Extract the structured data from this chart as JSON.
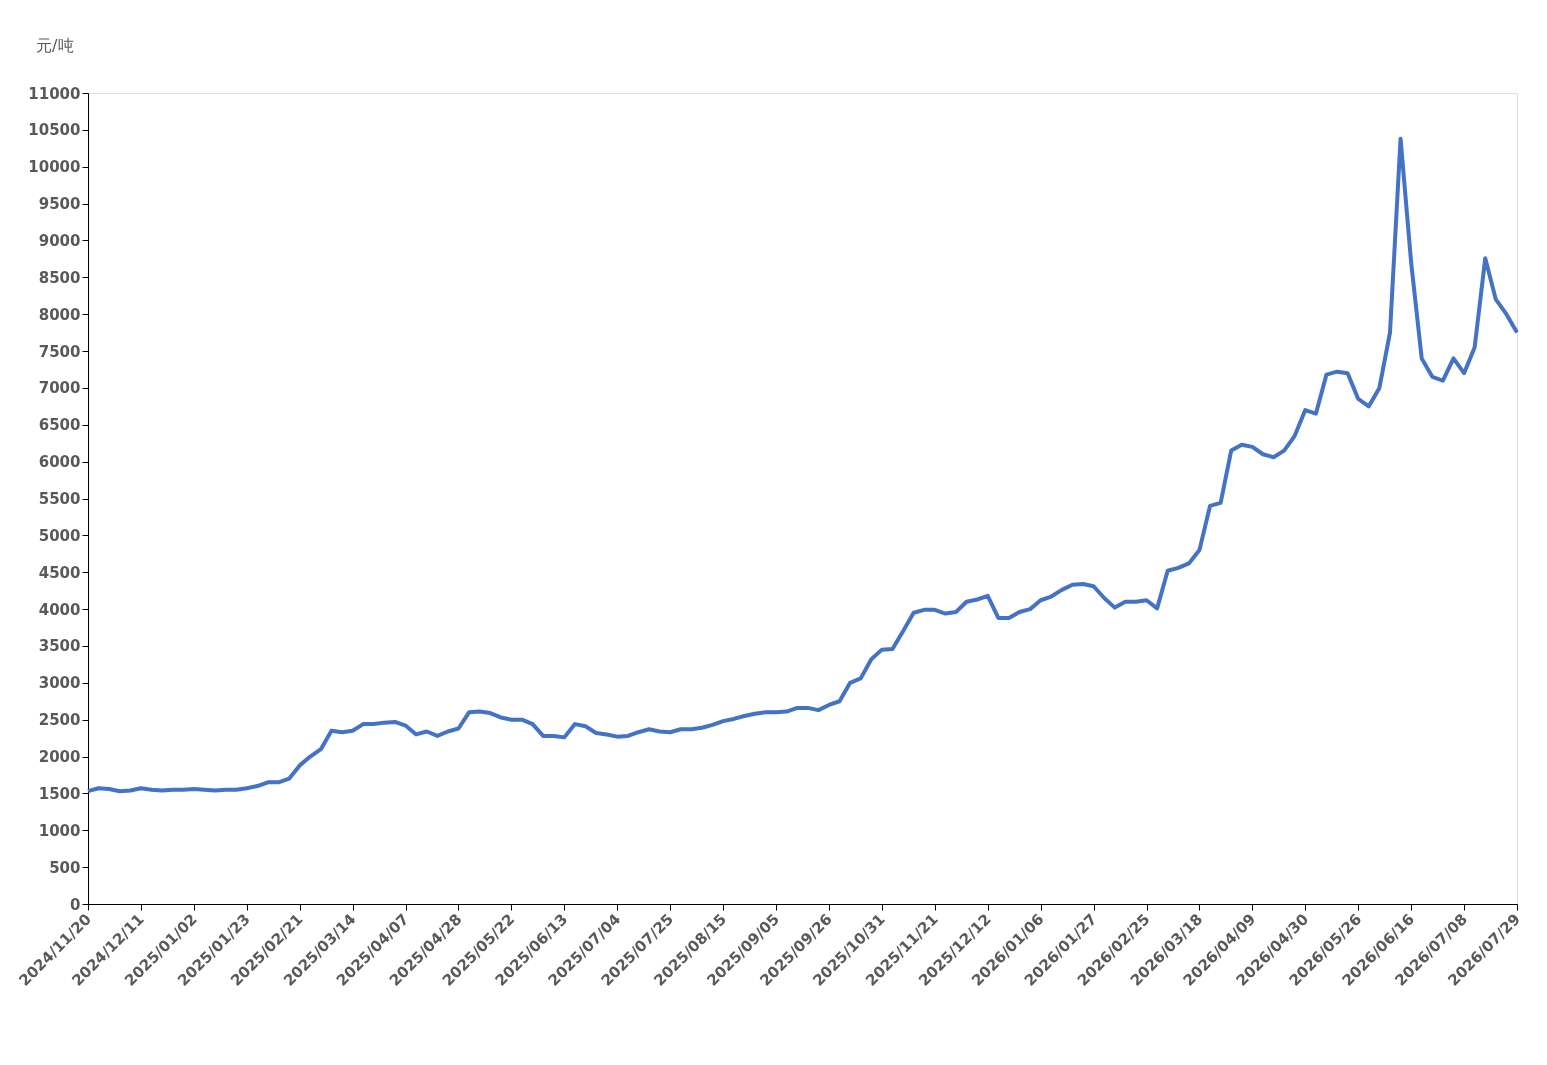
{
  "chart_data": {
    "type": "line",
    "ylabel": "元/吨",
    "categories": [
      "2024/11/20",
      null,
      null,
      null,
      null,
      "2024/12/11",
      null,
      null,
      null,
      null,
      "2025/01/02",
      null,
      null,
      null,
      null,
      "2025/01/23",
      null,
      null,
      null,
      null,
      "2025/02/21",
      null,
      null,
      null,
      null,
      "2025/03/14",
      null,
      null,
      null,
      null,
      "2025/04/07",
      null,
      null,
      null,
      null,
      "2025/04/28",
      null,
      null,
      null,
      null,
      "2025/05/22",
      null,
      null,
      null,
      null,
      "2025/06/13",
      null,
      null,
      null,
      null,
      "2025/07/04",
      null,
      null,
      null,
      null,
      "2025/07/25",
      null,
      null,
      null,
      null,
      "2025/08/15",
      null,
      null,
      null,
      null,
      "2025/09/05",
      null,
      null,
      null,
      null,
      "2025/09/26",
      null,
      null,
      null,
      null,
      "2025/10/31",
      null,
      null,
      null,
      null,
      "2025/11/21",
      null,
      null,
      null,
      null,
      "2025/12/12",
      null,
      null,
      null,
      null,
      "2026/01/06",
      null,
      null,
      null,
      null,
      "2026/01/27",
      null,
      null,
      null,
      null,
      "2026/02/25",
      null,
      null,
      null,
      null,
      "2026/03/18",
      null,
      null,
      null,
      null,
      "2026/04/09",
      null,
      null,
      null,
      null,
      "2026/04/30",
      null,
      null,
      null,
      null,
      "2026/05/26",
      null,
      null,
      null,
      null,
      "2026/06/16",
      null,
      null,
      null,
      null,
      "2026/07/08",
      null,
      null,
      null,
      null,
      "2026/07/29"
    ],
    "series": [
      {
        "color": "#4472c4",
        "values": [
          1530,
          1570,
          1560,
          1530,
          1540,
          1570,
          1550,
          1540,
          1550,
          1550,
          1560,
          1550,
          1540,
          1550,
          1550,
          1570,
          1600,
          1650,
          1650,
          1700,
          1880,
          2000,
          2100,
          2350,
          2330,
          2350,
          2440,
          2440,
          2460,
          2470,
          2420,
          2300,
          2340,
          2280,
          2340,
          2380,
          2600,
          2610,
          2590,
          2530,
          2500,
          2500,
          2440,
          2280,
          2280,
          2260,
          2440,
          2410,
          2320,
          2300,
          2270,
          2280,
          2330,
          2370,
          2340,
          2330,
          2370,
          2370,
          2390,
          2430,
          2480,
          2510,
          2550,
          2580,
          2600,
          2600,
          2610,
          2660,
          2660,
          2630,
          2700,
          2750,
          3000,
          3060,
          3320,
          3450,
          3460,
          3700,
          3950,
          3990,
          3990,
          3940,
          3960,
          4100,
          4130,
          4180,
          3880,
          3880,
          3960,
          4000,
          4120,
          4170,
          4260,
          4330,
          4340,
          4310,
          4150,
          4020,
          4100,
          4100,
          4120,
          4010,
          4520,
          4560,
          4620,
          4800,
          5400,
          5440,
          6150,
          6230,
          6200,
          6100,
          6060,
          6150,
          6350,
          6700,
          6650,
          7180,
          7220,
          7200,
          6850,
          6750,
          7000,
          7750,
          10380,
          8700,
          7400,
          7150,
          7100,
          7400,
          7200,
          7550,
          8760,
          8200,
          8000,
          7750
        ]
      }
    ],
    "ylim": [
      0,
      11000
    ],
    "yticks": [
      0,
      500,
      1000,
      1500,
      2000,
      2500,
      3000,
      3500,
      4000,
      4500,
      5000,
      5500,
      6000,
      6500,
      7000,
      7500,
      8000,
      8500,
      9000,
      9500,
      10000,
      10500,
      11000
    ],
    "grid": false,
    "legend": false,
    "marker": "none",
    "line_style": "solid"
  }
}
